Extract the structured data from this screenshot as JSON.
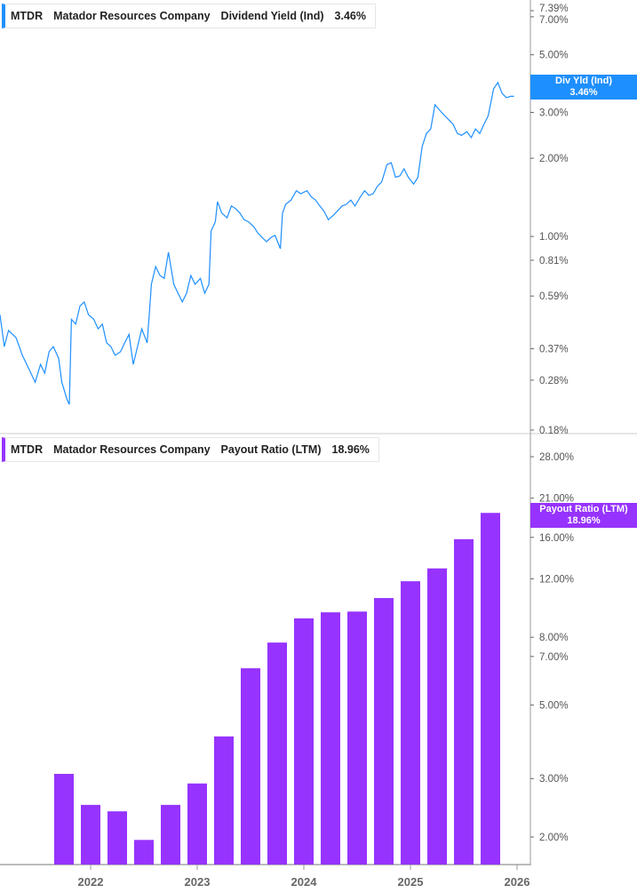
{
  "colors": {
    "yield": "#1e8fff",
    "payout": "#9633ff",
    "axis": "#bbbbbb"
  },
  "top_legend": {
    "ticker": "MTDR",
    "company": "Matador Resources Company",
    "metric": "Dividend Yield (Ind)",
    "value": "3.46%"
  },
  "bottom_legend": {
    "ticker": "MTDR",
    "company": "Matador Resources Company",
    "metric": "Payout Ratio (LTM)",
    "value": "18.96%"
  },
  "top_tag": {
    "label": "Div Yld (Ind)",
    "value": "3.46%"
  },
  "bottom_tag": {
    "label": "Payout Ratio (LTM)",
    "value": "18.96%"
  },
  "chart_data": [
    {
      "type": "line",
      "scale": "log",
      "ylim": [
        0.18,
        7.39
      ],
      "xlim": [
        2021.15,
        2026.1
      ],
      "yticks": [
        "7.39%",
        "7.00%",
        "5.00%",
        "3.00%",
        "2.00%",
        "1.00%",
        "0.81%",
        "0.59%",
        "0.37%",
        "0.28%",
        "0.18%"
      ],
      "ytick_values": [
        7.39,
        7.0,
        5.0,
        3.0,
        2.0,
        1.0,
        0.81,
        0.59,
        0.37,
        0.28,
        0.18
      ],
      "x": [
        2021.15,
        2021.19,
        2021.23,
        2021.3,
        2021.36,
        2021.42,
        2021.48,
        2021.53,
        2021.57,
        2021.61,
        2021.65,
        2021.7,
        2021.73,
        2021.78,
        2021.8,
        2021.82,
        2021.86,
        2021.9,
        2021.94,
        2021.98,
        2022.03,
        2022.07,
        2022.11,
        2022.15,
        2022.19,
        2022.23,
        2022.28,
        2022.32,
        2022.36,
        2022.4,
        2022.44,
        2022.48,
        2022.53,
        2022.55,
        2022.57,
        2022.61,
        2022.65,
        2022.69,
        2022.73,
        2022.78,
        2022.82,
        2022.86,
        2022.9,
        2022.94,
        2022.98,
        2023.03,
        2023.07,
        2023.11,
        2023.13,
        2023.17,
        2023.19,
        2023.23,
        2023.28,
        2023.32,
        2023.36,
        2023.4,
        2023.44,
        2023.48,
        2023.53,
        2023.57,
        2023.61,
        2023.65,
        2023.69,
        2023.73,
        2023.78,
        2023.8,
        2023.83,
        2023.88,
        2023.93,
        2023.97,
        2024.03,
        2024.07,
        2024.11,
        2024.15,
        2024.19,
        2024.23,
        2024.28,
        2024.32,
        2024.36,
        2024.4,
        2024.44,
        2024.48,
        2024.53,
        2024.57,
        2024.61,
        2024.65,
        2024.69,
        2024.73,
        2024.78,
        2024.82,
        2024.86,
        2024.9,
        2024.94,
        2024.98,
        2025.03,
        2025.07,
        2025.11,
        2025.15,
        2025.19,
        2025.23,
        2025.28,
        2025.32,
        2025.36,
        2025.4,
        2025.44,
        2025.48,
        2025.53,
        2025.57,
        2025.61,
        2025.65,
        2025.69,
        2025.73,
        2025.78,
        2025.82,
        2025.86,
        2025.9,
        2025.94,
        2025.97
      ],
      "y": [
        0.5,
        0.377,
        0.435,
        0.408,
        0.349,
        0.31,
        0.275,
        0.322,
        0.298,
        0.36,
        0.377,
        0.34,
        0.275,
        0.235,
        0.226,
        0.48,
        0.46,
        0.54,
        0.56,
        0.5,
        0.48,
        0.441,
        0.46,
        0.39,
        0.377,
        0.349,
        0.36,
        0.39,
        0.42,
        0.322,
        0.377,
        0.441,
        0.39,
        0.5,
        0.655,
        0.766,
        0.708,
        0.69,
        0.87,
        0.655,
        0.605,
        0.56,
        0.605,
        0.708,
        0.655,
        0.69,
        0.605,
        0.655,
        1.05,
        1.14,
        1.36,
        1.23,
        1.18,
        1.31,
        1.28,
        1.23,
        1.16,
        1.14,
        1.09,
        1.03,
        0.99,
        0.955,
        0.99,
        1.01,
        0.897,
        1.23,
        1.33,
        1.38,
        1.5,
        1.46,
        1.5,
        1.42,
        1.38,
        1.31,
        1.25,
        1.16,
        1.21,
        1.26,
        1.31,
        1.33,
        1.38,
        1.31,
        1.42,
        1.5,
        1.44,
        1.46,
        1.56,
        1.62,
        1.89,
        1.92,
        1.69,
        1.71,
        1.82,
        1.69,
        1.59,
        1.69,
        2.22,
        2.49,
        2.59,
        3.21,
        3.04,
        2.92,
        2.81,
        2.7,
        2.49,
        2.45,
        2.53,
        2.4,
        2.59,
        2.49,
        2.7,
        2.92,
        3.7,
        3.91,
        3.55,
        3.42,
        3.46,
        3.46
      ]
    },
    {
      "type": "bar",
      "scale": "log",
      "ylim": [
        1.65,
        28
      ],
      "xlim": [
        2021.15,
        2026.1
      ],
      "yticks": [
        "28.00%",
        "21.00%",
        "16.00%",
        "12.00%",
        "8.00%",
        "7.00%",
        "5.00%",
        "3.00%",
        "2.00%"
      ],
      "ytick_values": [
        28,
        21,
        16,
        12,
        8,
        7,
        5,
        3,
        2
      ],
      "x": [
        2021.75,
        2022.0,
        2022.25,
        2022.5,
        2022.75,
        2023.0,
        2023.25,
        2023.5,
        2023.75,
        2024.0,
        2024.25,
        2024.5,
        2024.75,
        2025.0,
        2025.25,
        2025.5,
        2025.75
      ],
      "values": [
        3.1,
        2.5,
        2.39,
        1.96,
        2.5,
        2.9,
        4.02,
        6.45,
        7.71,
        9.12,
        9.51,
        9.56,
        10.5,
        11.8,
        12.9,
        15.8,
        18.96
      ],
      "xticks": [
        "2022",
        "2023",
        "2024",
        "2025",
        "2026"
      ],
      "xtick_values": [
        2022,
        2023,
        2024,
        2025,
        2026
      ]
    }
  ]
}
